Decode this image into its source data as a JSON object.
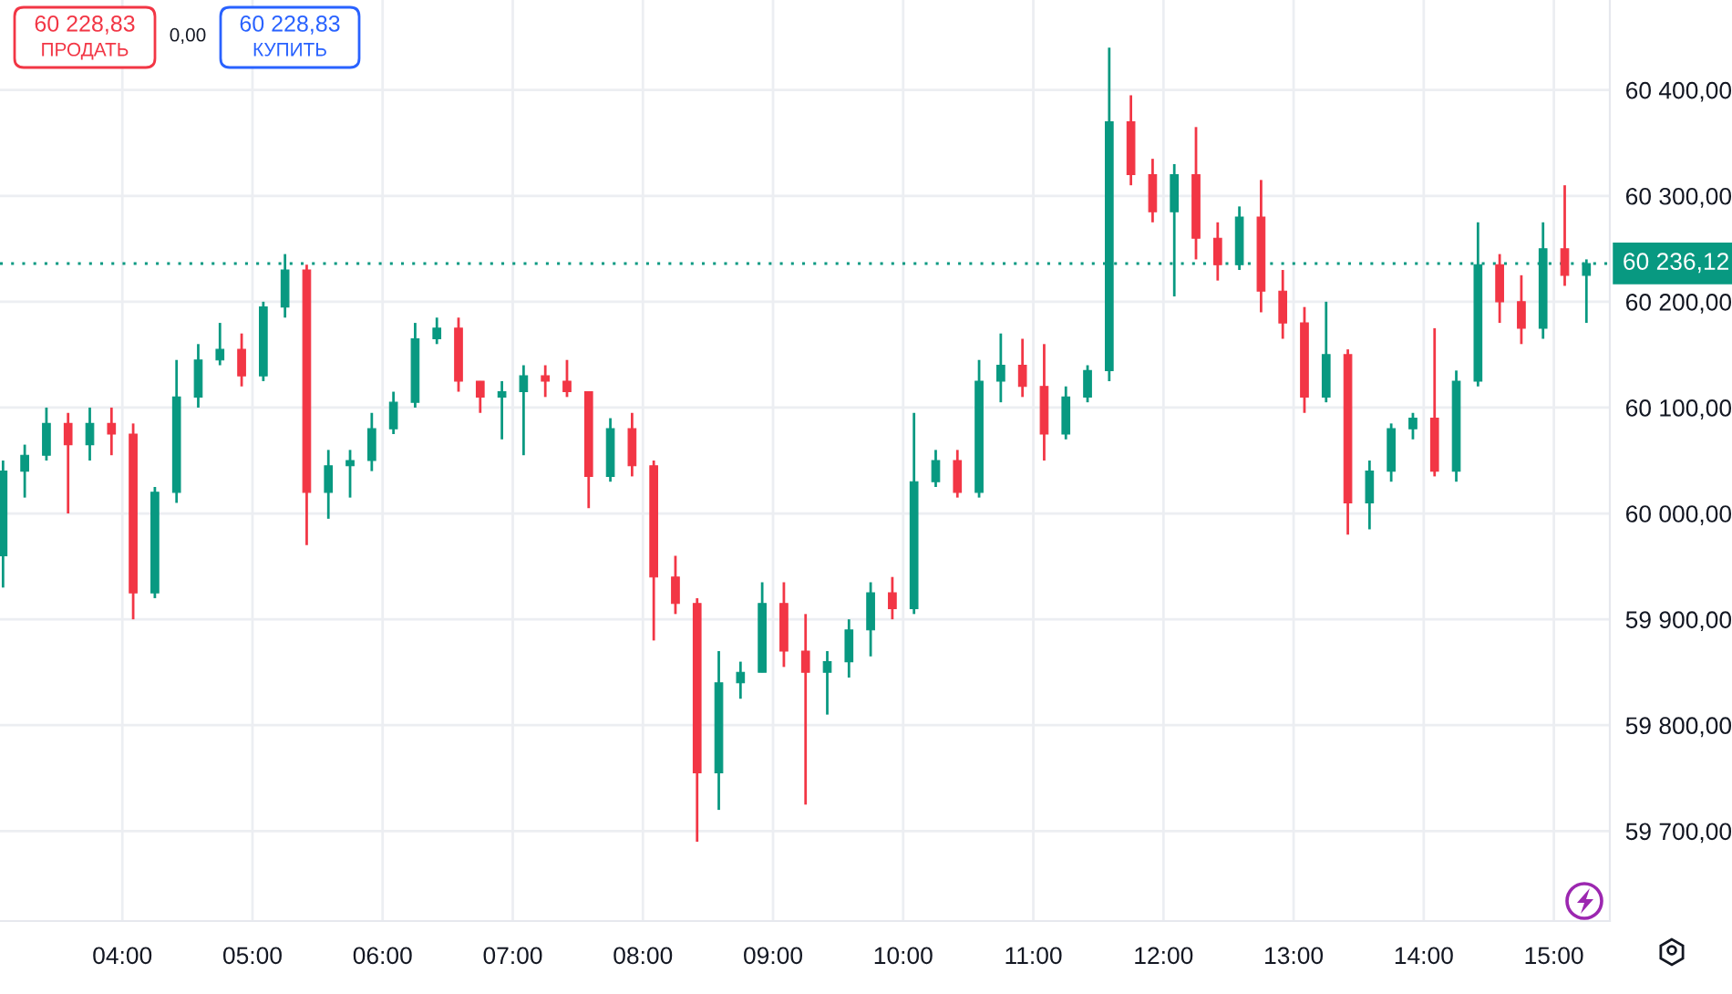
{
  "chart_data": {
    "type": "candlestick",
    "x": [
      3.0833,
      3.25,
      3.4167,
      3.5833,
      3.75,
      3.9167,
      4.0833,
      4.25,
      4.4167,
      4.5833,
      4.75,
      4.9167,
      5.0833,
      5.25,
      5.4167,
      5.5833,
      5.75,
      5.9167,
      6.0833,
      6.25,
      6.4167,
      6.5833,
      6.75,
      6.9167,
      7.0833,
      7.25,
      7.4167,
      7.5833,
      7.75,
      7.9167,
      8.0833,
      8.25,
      8.4167,
      8.5833,
      8.75,
      8.9167,
      9.0833,
      9.25,
      9.4167,
      9.5833,
      9.75,
      9.9167,
      10.0833,
      10.25,
      10.4167,
      10.5833,
      10.75,
      10.9167,
      11.0833,
      11.25,
      11.4167,
      11.5833,
      11.75,
      11.9167,
      12.0833,
      12.25,
      12.4167,
      12.5833,
      12.75,
      12.9167,
      13.0833,
      13.25,
      13.4167,
      13.5833,
      13.75,
      13.9167,
      14.0833,
      14.25,
      14.4167,
      14.5833,
      14.75,
      14.9167,
      15.0833,
      15.25
    ],
    "ohlc": [
      [
        59960,
        60050,
        59930,
        60040
      ],
      [
        60040,
        60065,
        60015,
        60055
      ],
      [
        60055,
        60100,
        60050,
        60085
      ],
      [
        60085,
        60095,
        60000,
        60065
      ],
      [
        60065,
        60100,
        60050,
        60085
      ],
      [
        60085,
        60100,
        60055,
        60075
      ],
      [
        60075,
        60085,
        59900,
        59925
      ],
      [
        59925,
        60025,
        59920,
        60020
      ],
      [
        60020,
        60145,
        60010,
        60110
      ],
      [
        60110,
        60160,
        60100,
        60145
      ],
      [
        60145,
        60180,
        60140,
        60155
      ],
      [
        60155,
        60170,
        60120,
        60130
      ],
      [
        60130,
        60200,
        60125,
        60195
      ],
      [
        60195,
        60245,
        60185,
        60230
      ],
      [
        60230,
        60235,
        59970,
        60020
      ],
      [
        60020,
        60060,
        59995,
        60045
      ],
      [
        60045,
        60060,
        60015,
        60050
      ],
      [
        60050,
        60095,
        60040,
        60080
      ],
      [
        60080,
        60115,
        60075,
        60105
      ],
      [
        60105,
        60180,
        60100,
        60165
      ],
      [
        60165,
        60185,
        60160,
        60175
      ],
      [
        60175,
        60185,
        60115,
        60125
      ],
      [
        60125,
        60125,
        60095,
        60110
      ],
      [
        60110,
        60125,
        60070,
        60115
      ],
      [
        60115,
        60140,
        60055,
        60130
      ],
      [
        60130,
        60140,
        60110,
        60125
      ],
      [
        60125,
        60145,
        60110,
        60115
      ],
      [
        60115,
        60115,
        60005,
        60035
      ],
      [
        60035,
        60090,
        60030,
        60080
      ],
      [
        60080,
        60095,
        60035,
        60045
      ],
      [
        60045,
        60050,
        59880,
        59940
      ],
      [
        59940,
        59960,
        59905,
        59915
      ],
      [
        59915,
        59920,
        59690,
        59755
      ],
      [
        59755,
        59870,
        59720,
        59840
      ],
      [
        59840,
        59860,
        59825,
        59850
      ],
      [
        59850,
        59935,
        59850,
        59915
      ],
      [
        59915,
        59935,
        59855,
        59870
      ],
      [
        59870,
        59905,
        59725,
        59850
      ],
      [
        59850,
        59870,
        59810,
        59860
      ],
      [
        59860,
        59900,
        59845,
        59890
      ],
      [
        59890,
        59935,
        59865,
        59925
      ],
      [
        59925,
        59940,
        59900,
        59910
      ],
      [
        59910,
        60095,
        59905,
        60030
      ],
      [
        60030,
        60060,
        60025,
        60050
      ],
      [
        60050,
        60060,
        60015,
        60020
      ],
      [
        60020,
        60145,
        60015,
        60125
      ],
      [
        60125,
        60170,
        60105,
        60140
      ],
      [
        60140,
        60165,
        60110,
        60120
      ],
      [
        60120,
        60160,
        60050,
        60075
      ],
      [
        60075,
        60120,
        60070,
        60110
      ],
      [
        60110,
        60140,
        60105,
        60135
      ],
      [
        60135,
        60440,
        60125,
        60370
      ],
      [
        60370,
        60395,
        60310,
        60320
      ],
      [
        60320,
        60335,
        60275,
        60285
      ],
      [
        60285,
        60330,
        60205,
        60320
      ],
      [
        60320,
        60365,
        60240,
        60260
      ],
      [
        60260,
        60275,
        60220,
        60235
      ],
      [
        60235,
        60290,
        60230,
        60280
      ],
      [
        60280,
        60315,
        60190,
        60210
      ],
      [
        60210,
        60230,
        60165,
        60180
      ],
      [
        60180,
        60195,
        60095,
        60110
      ],
      [
        60110,
        60200,
        60105,
        60150
      ],
      [
        60150,
        60155,
        59980,
        60010
      ],
      [
        60010,
        60050,
        59985,
        60040
      ],
      [
        60040,
        60085,
        60030,
        60080
      ],
      [
        60080,
        60095,
        60070,
        60090
      ],
      [
        60090,
        60175,
        60035,
        60040
      ],
      [
        60040,
        60135,
        60030,
        60125
      ],
      [
        60125,
        60275,
        60120,
        60235
      ],
      [
        60235,
        60245,
        60180,
        60200
      ],
      [
        60200,
        60225,
        60160,
        60175
      ],
      [
        60175,
        60275,
        60165,
        60250
      ],
      [
        60250,
        60310,
        60215,
        60225
      ],
      [
        60225,
        60240,
        60180,
        60236
      ]
    ],
    "colors": [
      "#089981",
      "#089981",
      "#089981",
      "#f23645",
      "#089981",
      "#f23645",
      "#f23645",
      "#089981",
      "#089981",
      "#089981",
      "#089981",
      "#f23645",
      "#089981",
      "#089981",
      "#f23645",
      "#089981",
      "#089981",
      "#089981",
      "#089981",
      "#089981",
      "#089981",
      "#f23645",
      "#f23645",
      "#089981",
      "#089981",
      "#f23645",
      "#f23645",
      "#f23645",
      "#089981",
      "#f23645",
      "#f23645",
      "#f23645",
      "#f23645",
      "#089981",
      "#089981",
      "#089981",
      "#f23645",
      "#f23645",
      "#089981",
      "#089981",
      "#089981",
      "#f23645",
      "#089981",
      "#089981",
      "#f23645",
      "#089981",
      "#089981",
      "#f23645",
      "#f23645",
      "#089981",
      "#089981",
      "#089981",
      "#f23645",
      "#f23645",
      "#089981",
      "#f23645",
      "#f23645",
      "#089981",
      "#f23645",
      "#f23645",
      "#f23645",
      "#089981",
      "#f23645",
      "#089981",
      "#089981",
      "#089981",
      "#f23645",
      "#089981",
      "#089981",
      "#f23645",
      "#f23645",
      "#089981",
      "#f23645",
      "#089981"
    ],
    "xlim": [
      3.06,
      15.43
    ],
    "ylim": [
      59615,
      60485
    ],
    "xticks": [
      {
        "value": 4,
        "label": "04:00"
      },
      {
        "value": 5,
        "label": "05:00"
      },
      {
        "value": 6,
        "label": "06:00"
      },
      {
        "value": 7,
        "label": "07:00"
      },
      {
        "value": 8,
        "label": "08:00"
      },
      {
        "value": 9,
        "label": "09:00"
      },
      {
        "value": 10,
        "label": "10:00"
      },
      {
        "value": 11,
        "label": "11:00"
      },
      {
        "value": 12,
        "label": "12:00"
      },
      {
        "value": 13,
        "label": "13:00"
      },
      {
        "value": 14,
        "label": "14:00"
      },
      {
        "value": 15,
        "label": "15:00"
      }
    ],
    "yticks": [
      {
        "value": 59700,
        "label": "59 700,00"
      },
      {
        "value": 59800,
        "label": "59 800,00"
      },
      {
        "value": 59900,
        "label": "59 900,00"
      },
      {
        "value": 60000,
        "label": "60 000,00"
      },
      {
        "value": 60100,
        "label": "60 100,00"
      },
      {
        "value": 60200,
        "label": "60 200,00"
      },
      {
        "value": 60300,
        "label": "60 300,00"
      },
      {
        "value": 60400,
        "label": "60 400,00"
      }
    ],
    "ref_lines": [
      {
        "axis": "y",
        "value": 60236.12,
        "label": "60 236,12",
        "color": "#089981",
        "line_style": "dotted"
      }
    ],
    "annotations": [
      "60 228,83",
      "ПРОДАТЬ",
      "0,00",
      "60 228,83",
      "КУПИТЬ"
    ],
    "grid": true
  }
}
